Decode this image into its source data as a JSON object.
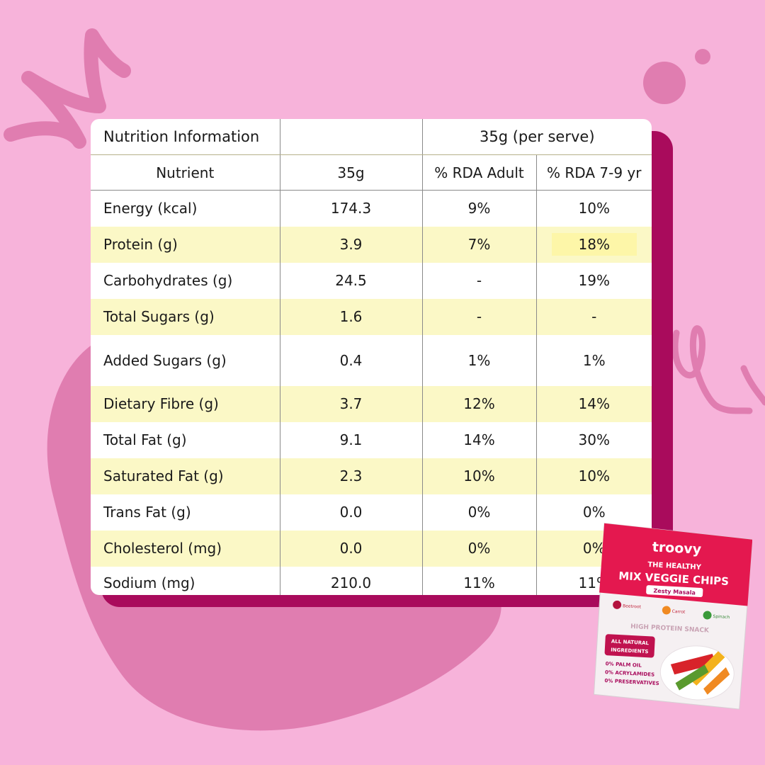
{
  "colors": {
    "background": "#f7b3da",
    "blob": "#e07db0",
    "shadow_card": "#a90b5c",
    "highlight_row": "#fbf8c6",
    "pack_red": "#e4184f"
  },
  "table": {
    "header_row1": [
      "Nutrition Information",
      "",
      "35g (per serve)"
    ],
    "header_row2": [
      "Nutrient",
      "35g",
      "% RDA Adult",
      "% RDA 7-9 yr"
    ],
    "rows": [
      {
        "nutrient": "Energy (kcal)",
        "amount": "174.3",
        "rda_adult": "9%",
        "rda_child": "10%"
      },
      {
        "nutrient": "Protein (g)",
        "amount": "3.9",
        "rda_adult": "7%",
        "rda_child": "18%"
      },
      {
        "nutrient": "Carbohydrates (g)",
        "amount": "24.5",
        "rda_adult": "-",
        "rda_child": "19%"
      },
      {
        "nutrient": "Total Sugars (g)",
        "amount": "1.6",
        "rda_adult": "-",
        "rda_child": "-"
      },
      {
        "nutrient": "Added Sugars (g)",
        "amount": "0.4",
        "rda_adult": "1%",
        "rda_child": "1%"
      },
      {
        "nutrient": "Dietary Fibre (g)",
        "amount": "3.7",
        "rda_adult": "12%",
        "rda_child": "14%"
      },
      {
        "nutrient": "Total Fat (g)",
        "amount": "9.1",
        "rda_adult": "14%",
        "rda_child": "30%"
      },
      {
        "nutrient": "Saturated Fat (g)",
        "amount": "2.3",
        "rda_adult": "10%",
        "rda_child": "10%"
      },
      {
        "nutrient": "Trans Fat (g)",
        "amount": "0.0",
        "rda_adult": "0%",
        "rda_child": "0%"
      },
      {
        "nutrient": "Cholesterol (mg)",
        "amount": "0.0",
        "rda_adult": "0%",
        "rda_child": "0%"
      },
      {
        "nutrient": "Sodium (mg)",
        "amount": "210.0",
        "rda_adult": "11%",
        "rda_child": "11%"
      }
    ]
  },
  "pack": {
    "brand": "troovy",
    "line1": "THE HEALTHY",
    "line2": "MIX VEGGIE CHIPS",
    "flavor": "Zesty Masala",
    "veg1": "Beetroot",
    "veg2": "Carrot",
    "veg3": "Spinach",
    "banner": "HIGH PROTEIN SNACK",
    "badge1": "ALL NATURAL",
    "badge2": "INGREDIENTS",
    "claim1": "0% PALM OIL",
    "claim2": "0% ACRYLAMIDES",
    "claim3": "0% PRESERVATIVES"
  }
}
